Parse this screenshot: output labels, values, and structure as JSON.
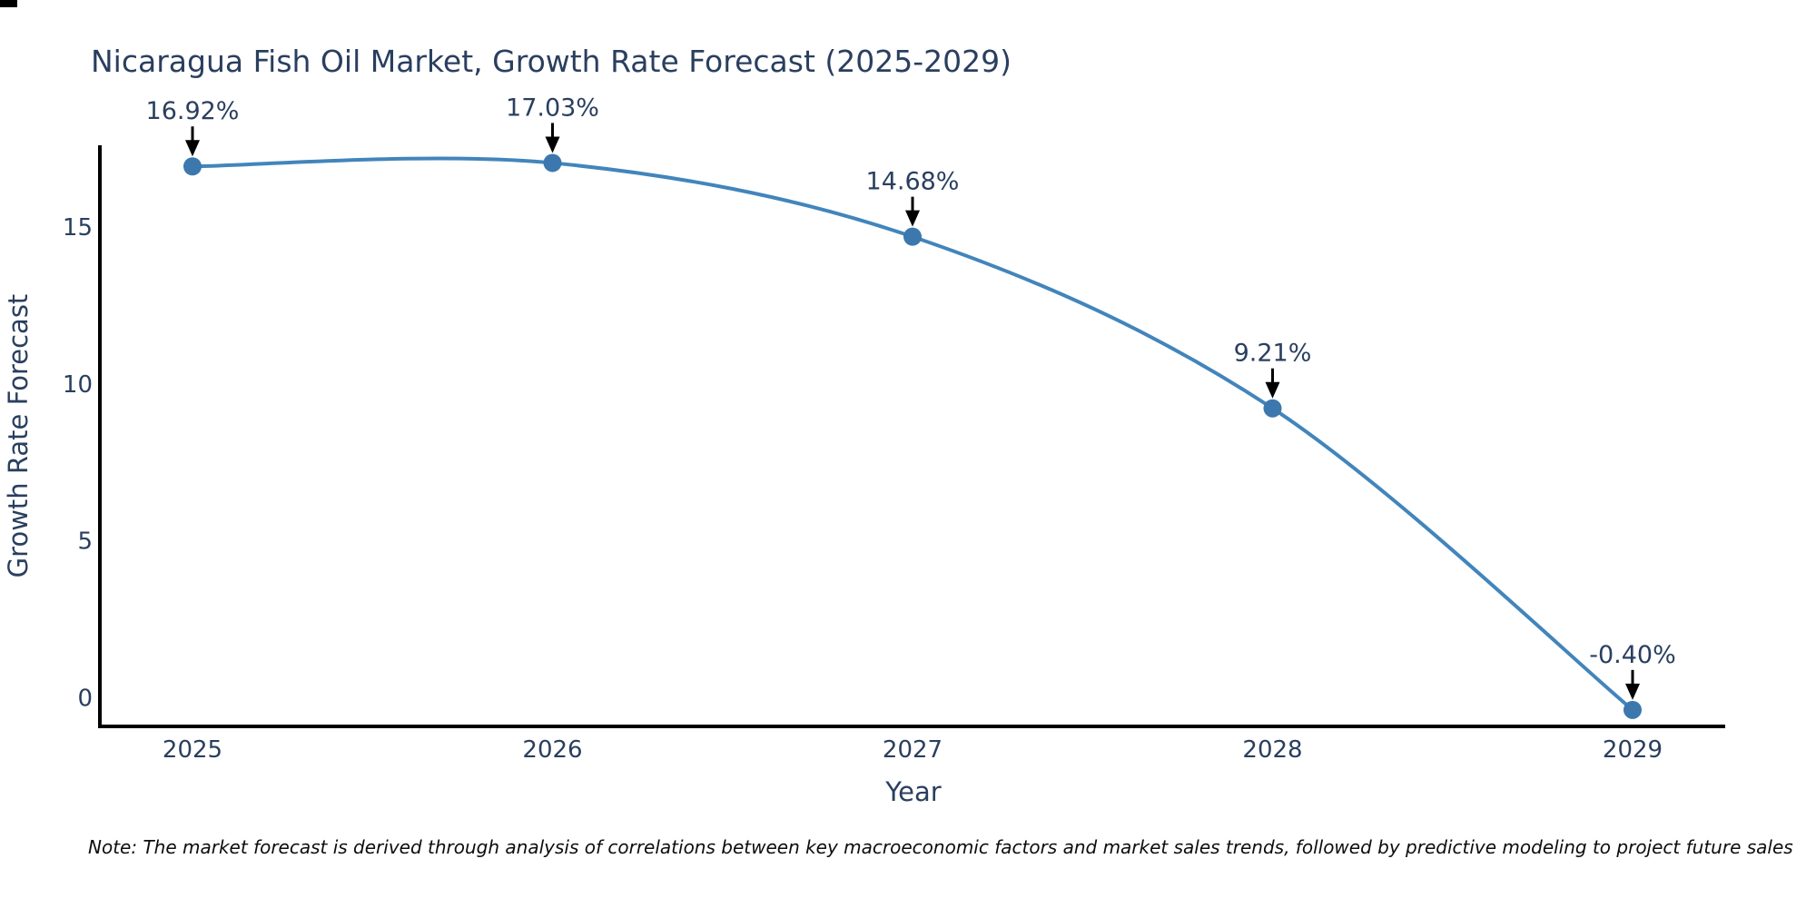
{
  "chart_data": {
    "type": "line",
    "title": "Nicaragua Fish Oil Market, Growth Rate Forecast (2025-2029)",
    "xlabel": "Year",
    "ylabel": "Growth Rate Forecast",
    "categories": [
      2025,
      2026,
      2027,
      2028,
      2029
    ],
    "series": [
      {
        "name": "Growth Rate Forecast",
        "values": [
          16.92,
          17.03,
          14.68,
          9.21,
          -0.4
        ],
        "point_labels": [
          "16.92%",
          "17.03%",
          "14.68%",
          "9.21%",
          "-0.40%"
        ]
      }
    ],
    "yticks": [
      0,
      5,
      10,
      15
    ],
    "ylim": [
      -1.3,
      18.5
    ],
    "line_shape": "spline",
    "markers": true,
    "grid": false,
    "legend_position": "none",
    "colors": {
      "line": "#4285bb",
      "marker": "#3c78ad",
      "axis": "#000000",
      "arrow": "#000000",
      "text": "#2a3f5f",
      "note": "#0d0d0d",
      "background": "#ffffff"
    }
  },
  "note": "Note: The market forecast is derived through analysis of correlations between key macroeconomic factors and market sales trends, followed by predictive modeling to project future sales"
}
